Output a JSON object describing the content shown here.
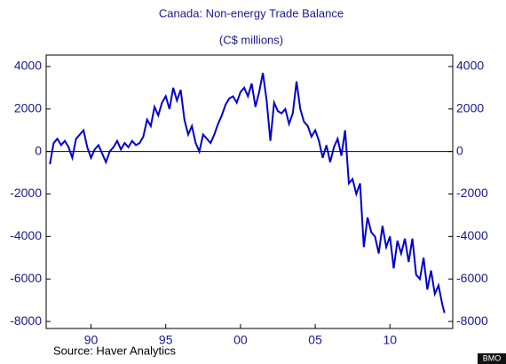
{
  "chart_data": {
    "type": "line",
    "title": "Canada: Non-energy Trade Balance",
    "subtitle": "(C$ millions)",
    "source": "Source: Haver Analytics",
    "watermark": "BMO",
    "x": [
      1987.25,
      1987.5,
      1987.75,
      1988.0,
      1988.25,
      1988.5,
      1988.75,
      1989.0,
      1989.25,
      1989.5,
      1989.75,
      1990.0,
      1990.25,
      1990.5,
      1990.75,
      1991.0,
      1991.25,
      1991.5,
      1991.75,
      1992.0,
      1992.25,
      1992.5,
      1992.75,
      1993.0,
      1993.25,
      1993.5,
      1993.75,
      1994.0,
      1994.25,
      1994.5,
      1994.75,
      1995.0,
      1995.25,
      1995.5,
      1995.75,
      1996.0,
      1996.25,
      1996.5,
      1996.75,
      1997.0,
      1997.25,
      1997.5,
      1997.75,
      1998.0,
      1998.25,
      1998.5,
      1998.75,
      1999.0,
      1999.25,
      1999.5,
      1999.75,
      2000.0,
      2000.25,
      2000.5,
      2000.75,
      2001.0,
      2001.25,
      2001.5,
      2001.75,
      2002.0,
      2002.25,
      2002.5,
      2002.75,
      2003.0,
      2003.25,
      2003.5,
      2003.75,
      2004.0,
      2004.25,
      2004.5,
      2004.75,
      2005.0,
      2005.25,
      2005.5,
      2005.75,
      2006.0,
      2006.25,
      2006.5,
      2006.75,
      2007.0,
      2007.25,
      2007.5,
      2007.75,
      2008.0,
      2008.25,
      2008.5,
      2008.75,
      2009.0,
      2009.25,
      2009.5,
      2009.75,
      2010.0,
      2010.25,
      2010.5,
      2010.75,
      2011.0,
      2011.25,
      2011.5,
      2011.75,
      2012.0,
      2012.25,
      2012.5,
      2012.75,
      2013.0,
      2013.25,
      2013.5,
      2013.65
    ],
    "series": [
      {
        "name": "Non-energy Trade Balance",
        "color": "#0000cc",
        "values": [
          -600,
          400,
          600,
          300,
          500,
          200,
          -300,
          600,
          800,
          1000,
          200,
          -300,
          100,
          300,
          -100,
          -500,
          0,
          200,
          500,
          100,
          400,
          200,
          500,
          300,
          400,
          700,
          1500,
          1200,
          2100,
          1700,
          2300,
          2600,
          2000,
          3000,
          2400,
          2900,
          1500,
          800,
          1200,
          400,
          0,
          800,
          600,
          400,
          800,
          1300,
          1700,
          2200,
          2500,
          2600,
          2300,
          2800,
          3000,
          2600,
          3200,
          2100,
          2800,
          3700,
          2400,
          500,
          2300,
          1900,
          1800,
          2000,
          1300,
          1800,
          3300,
          2000,
          1400,
          1200,
          700,
          1000,
          500,
          -300,
          300,
          -500,
          200,
          600,
          -200,
          1000,
          -1500,
          -1300,
          -2000,
          -1500,
          -4500,
          -3100,
          -3800,
          -4000,
          -4800,
          -3500,
          -4500,
          -4000,
          -5500,
          -4200,
          -4800,
          -4100,
          -5200,
          -4100,
          -5800,
          -6000,
          -5000,
          -6500,
          -5600,
          -6700,
          -6300,
          -7200,
          -7600
        ]
      }
    ],
    "xlim": [
      1987.0,
      2014.2
    ],
    "xticks": [
      {
        "value": 1990,
        "label": "90"
      },
      {
        "value": 1995,
        "label": "95"
      },
      {
        "value": 2000,
        "label": "00"
      },
      {
        "value": 2005,
        "label": "05"
      },
      {
        "value": 2010,
        "label": "10"
      }
    ],
    "ylim": [
      -8330,
      4540
    ],
    "yticks": [
      -8000,
      -6000,
      -4000,
      -2000,
      0,
      2000,
      4000
    ],
    "y2lim": [
      -8330,
      4540
    ],
    "y2ticks": [
      -8000,
      -6000,
      -4000,
      -2000,
      0,
      2000,
      4000
    ]
  }
}
